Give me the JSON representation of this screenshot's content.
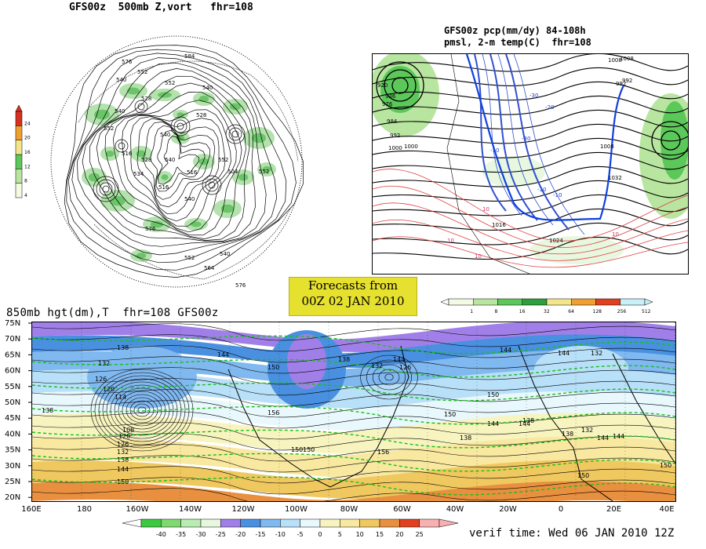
{
  "top_left_map": {
    "title": "GFS00z  500mb Z,vort   fhr=108",
    "colorbar": {
      "levels": [
        "4",
        "8",
        "12",
        "16",
        "20",
        "24"
      ],
      "colors": [
        "#f4fbe4",
        "#b8e6a0",
        "#5cc85a",
        "#f3e68a",
        "#f0a030",
        "#d83020"
      ]
    },
    "contour_labels": [
      "576",
      "584",
      "552",
      "540",
      "552",
      "540",
      "528",
      "540",
      "528",
      "552",
      "540",
      "516",
      "528",
      "540",
      "552",
      "516",
      "534",
      "504",
      "552",
      "516",
      "540",
      "576",
      "540",
      "552",
      "564",
      "576"
    ]
  },
  "top_right_map": {
    "title_line1": "GFS00z pcp(mm/dy) 84-108h",
    "title_line2": "pmsl, 2-m temp(C)  fhr=108",
    "colorbar": {
      "levels": [
        "1",
        "8",
        "16",
        "32",
        "64",
        "128",
        "256",
        "512"
      ],
      "colors": [
        "#f4fbe4",
        "#b8e6a0",
        "#5cc85a",
        "#2e9e3e",
        "#f3e68a",
        "#f0a030",
        "#e04020",
        "#c8f0f8"
      ]
    },
    "contour_labels": [
      "1008",
      "920",
      "936",
      "976",
      "984",
      "992",
      "1000",
      "1000",
      "992",
      "1008",
      "-30",
      "-20",
      "-10",
      "-10",
      "-10",
      "-30",
      "10",
      "10",
      "10",
      "10",
      "1016",
      "1024",
      "1032",
      "1008",
      "992"
    ]
  },
  "banner": {
    "line1": "Forecasts from",
    "line2": "00Z 02 JAN 2010"
  },
  "bottom_map": {
    "title": "850mb hgt(dm),T  fhr=108 GFS00z",
    "lat_labels": [
      "75N",
      "70N",
      "65N",
      "60N",
      "55N",
      "50N",
      "45N",
      "40N",
      "35N",
      "30N",
      "25N",
      "20N"
    ],
    "lon_labels": [
      "160E",
      "180",
      "160W",
      "140W",
      "120W",
      "100W",
      "80W",
      "60W",
      "40W",
      "20W",
      "0",
      "20E",
      "40E"
    ],
    "contour_labels": [
      "138",
      "132",
      "126",
      "120",
      "114",
      "108",
      "138",
      "144",
      "150",
      "156",
      "150",
      "144",
      "138",
      "132",
      "126",
      "144",
      "150",
      "144",
      "132",
      "138",
      "144",
      "150",
      "156",
      "150",
      "138",
      "144",
      "138",
      "150",
      "144",
      "120",
      "126",
      "132",
      "138",
      "144",
      "150",
      "132",
      "144",
      "150"
    ],
    "colorbar": {
      "levels": [
        "-40",
        "-35",
        "-30",
        "-25",
        "-20",
        "-15",
        "-10",
        "-5",
        "0",
        "5",
        "10",
        "15",
        "20",
        "25"
      ],
      "colors": [
        "#3cc840",
        "#80d870",
        "#b8ecb0",
        "#e8f8e0",
        "#a080e8",
        "#4a90e0",
        "#80b8f0",
        "#b8e0f8",
        "#e8f8fc",
        "#f8f4c0",
        "#f8e8a0",
        "#f0c860",
        "#e89040",
        "#e04020",
        "#f8b0b0"
      ]
    },
    "verif_time": "verif time: Wed 06 JAN 2010 12Z"
  }
}
